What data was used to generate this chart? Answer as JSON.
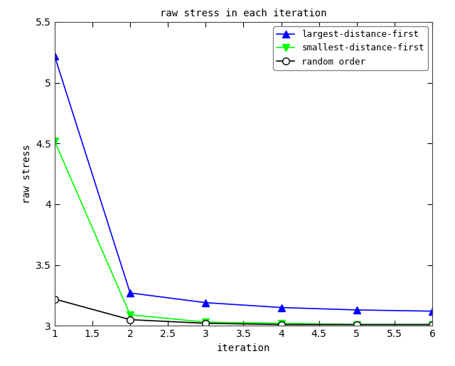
{
  "title": "raw stress in each iteration",
  "xlabel": "iteration",
  "ylabel": "raw stress",
  "xlim": [
    1,
    6
  ],
  "ylim": [
    3.0,
    5.5
  ],
  "yticks": [
    3.0,
    3.5,
    4.0,
    4.5,
    5.0,
    5.5
  ],
  "xticks": [
    1.0,
    1.5,
    2.0,
    2.5,
    3.0,
    3.5,
    4.0,
    4.5,
    5.0,
    5.5,
    6.0
  ],
  "series": [
    {
      "label": "largest-distance-first",
      "x": [
        1,
        2,
        3,
        4,
        5,
        6
      ],
      "y": [
        5.22,
        3.27,
        3.19,
        3.15,
        3.13,
        3.12
      ],
      "color": "#0000ff",
      "marker": "^",
      "markersize": 7,
      "linewidth": 1.2,
      "markerfacecolor": "#0000ff"
    },
    {
      "label": "smallest-distance-first",
      "x": [
        1,
        2,
        3,
        4,
        5,
        6
      ],
      "y": [
        4.52,
        3.09,
        3.03,
        3.02,
        3.01,
        3.01
      ],
      "color": "#00ff00",
      "marker": "v",
      "markersize": 7,
      "linewidth": 1.2,
      "markerfacecolor": "#00ff00"
    },
    {
      "label": "random order",
      "x": [
        1,
        2,
        3,
        4,
        5,
        6
      ],
      "y": [
        3.22,
        3.05,
        3.02,
        3.01,
        3.01,
        3.01
      ],
      "color": "#000000",
      "marker": "o",
      "markersize": 7,
      "linewidth": 1.2,
      "markerfacecolor": "white"
    }
  ],
  "legend_loc": "upper right",
  "fig_facecolor": "#ffffff",
  "axes_facecolor": "#ffffff",
  "title_fontsize": 10,
  "axis_label_fontsize": 10,
  "tick_fontsize": 10,
  "legend_fontsize": 9
}
